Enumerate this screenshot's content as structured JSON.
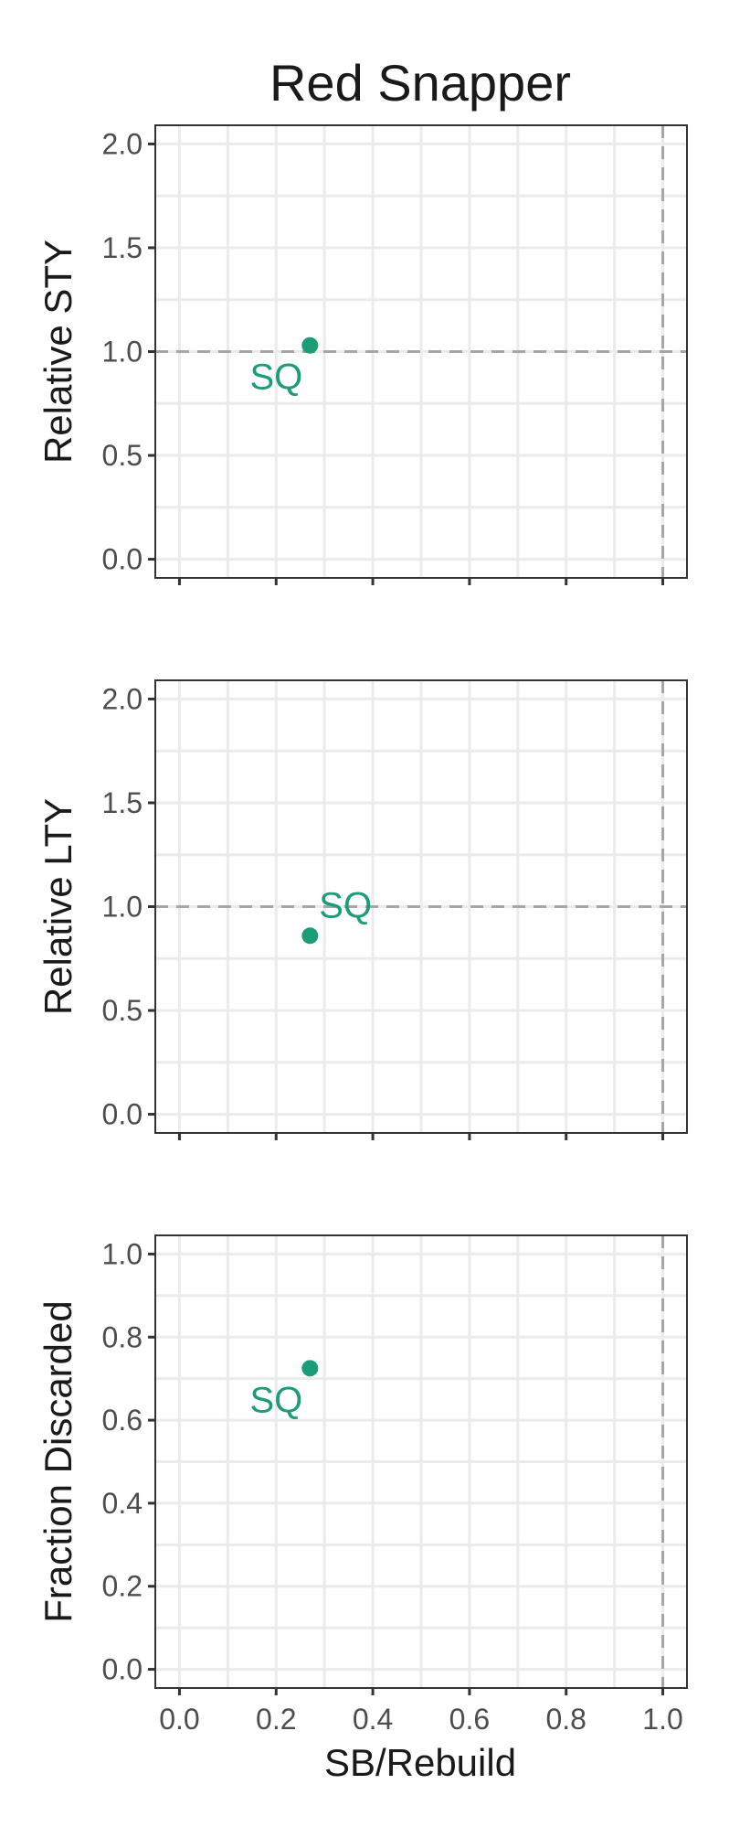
{
  "chart_data": {
    "type": "scatter",
    "title": "Red Snapper",
    "shared_xlabel": "SB/Rebuild",
    "xlim": [
      -0.05,
      1.05
    ],
    "xticks": [
      0.0,
      0.2,
      0.4,
      0.6,
      0.8,
      1.0
    ],
    "xtick_labels": [
      "0.0",
      "0.2",
      "0.4",
      "0.6",
      "0.8",
      "1.0"
    ],
    "x_tick_labels_shown_on": "bottom panel only",
    "grid": true,
    "point_color": "#1b9e77",
    "reference_line_color": "#a6a6a6",
    "panels": [
      {
        "ylabel": "Relative STY",
        "ylim": [
          -0.09,
          2.09
        ],
        "yticks": [
          0.0,
          0.5,
          1.0,
          1.5,
          2.0
        ],
        "ytick_labels": [
          "0.0",
          "0.5",
          "1.0",
          "1.5",
          "2.0"
        ],
        "hline": 1.0,
        "vline": 1.0,
        "points": [
          {
            "label": "SQ",
            "x": 0.27,
            "y": 1.03
          }
        ],
        "label_position": "below-left"
      },
      {
        "ylabel": "Relative LTY",
        "ylim": [
          -0.09,
          2.09
        ],
        "yticks": [
          0.0,
          0.5,
          1.0,
          1.5,
          2.0
        ],
        "ytick_labels": [
          "0.0",
          "0.5",
          "1.0",
          "1.5",
          "2.0"
        ],
        "hline": 1.0,
        "vline": 1.0,
        "points": [
          {
            "label": "SQ",
            "x": 0.27,
            "y": 0.86
          }
        ],
        "label_position": "above-right"
      },
      {
        "ylabel": "Fraction Discarded",
        "ylim": [
          -0.045,
          1.045
        ],
        "yticks": [
          0.0,
          0.2,
          0.4,
          0.6,
          0.8,
          1.0
        ],
        "ytick_labels": [
          "0.0",
          "0.2",
          "0.4",
          "0.6",
          "0.8",
          "1.0"
        ],
        "hline": null,
        "vline": 1.0,
        "points": [
          {
            "label": "SQ",
            "x": 0.27,
            "y": 0.725
          }
        ],
        "label_position": "below-left"
      }
    ]
  }
}
